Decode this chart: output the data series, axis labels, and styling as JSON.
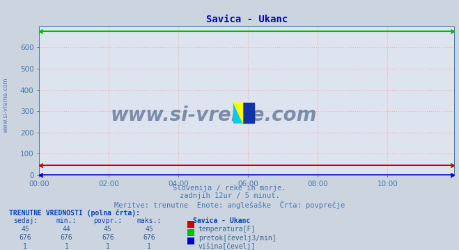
{
  "title": "Savica - Ukanc",
  "bg_color": "#ccd4e0",
  "plot_bg_color": "#dde4f0",
  "grid_color": "#ffaaaa",
  "title_color": "#0000bb",
  "text_color": "#4477aa",
  "xlabel_text1": "Slovenija / reke in morje.",
  "xlabel_text2": "zadnjih 12ur / 5 minut.",
  "xlabel_text3": "Meritve: trenutne  Enote: anglešaške  Črta: povprečje",
  "watermark": "www.si-vreme.com",
  "watermark_color": "#1a3a6a",
  "xlim": [
    0,
    143
  ],
  "ylim": [
    0,
    700
  ],
  "yticks": [
    0,
    100,
    200,
    300,
    400,
    500,
    600
  ],
  "xtick_labels": [
    "00:00",
    "02:00",
    "04:00",
    "06:00",
    "08:00",
    "10:00"
  ],
  "xtick_positions": [
    0,
    24,
    48,
    72,
    96,
    120
  ],
  "n_points": 144,
  "temp_value": 45,
  "pretok_value": 676,
  "visina_value": 1,
  "temp_color": "#cc0000",
  "pretok_color": "#00bb00",
  "visina_color": "#0000cc",
  "sidebar_text": "www.si-vreme.com",
  "sidebar_color": "#4466aa",
  "table_header_color": "#0044bb",
  "table_data_color": "#336699",
  "table_label_color": "#0044bb"
}
